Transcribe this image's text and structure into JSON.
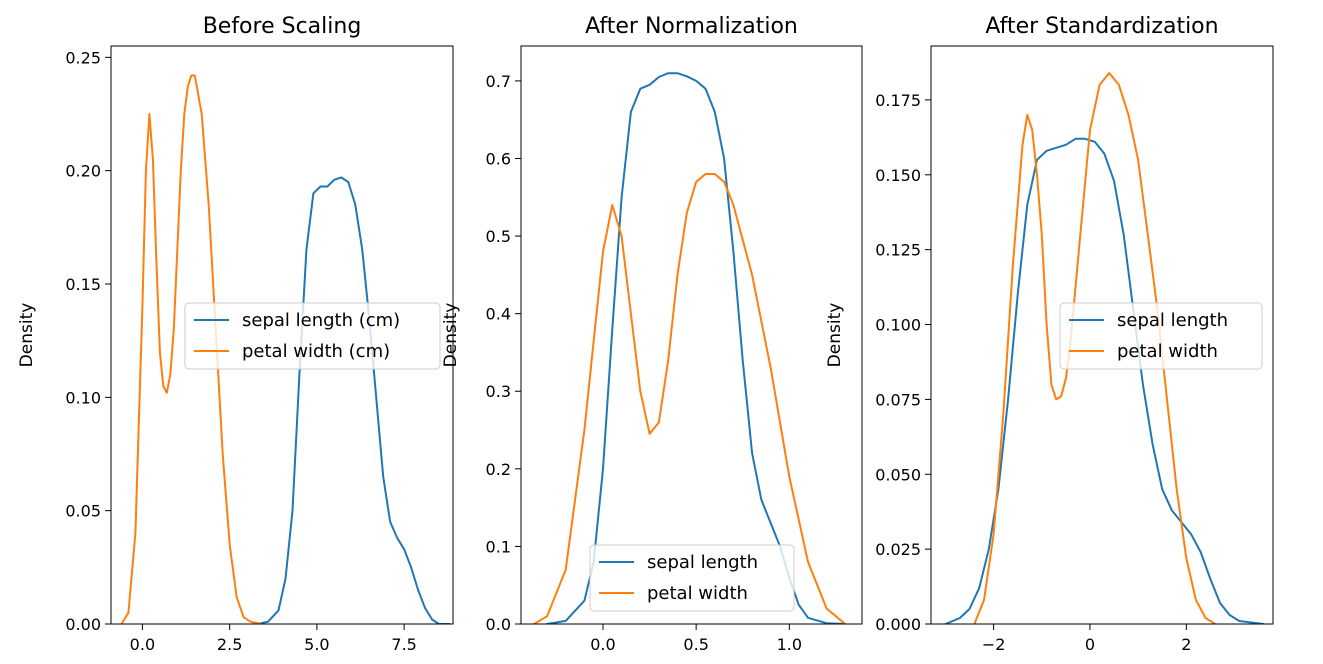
{
  "chart_data": [
    {
      "type": "line",
      "title": "Before Scaling",
      "xlabel": "",
      "ylabel": "Density",
      "xlim": [
        -0.9,
        8.9
      ],
      "ylim": [
        0,
        0.255
      ],
      "xticks": [
        0.0,
        2.5,
        5.0,
        7.5
      ],
      "xtick_labels": [
        "0.0",
        "2.5",
        "5.0",
        "7.5"
      ],
      "yticks": [
        0.0,
        0.05,
        0.1,
        0.15,
        0.2,
        0.25
      ],
      "ytick_labels": [
        "0.00",
        "0.05",
        "0.10",
        "0.15",
        "0.20",
        "0.25"
      ],
      "legend_position": "center-right",
      "series": [
        {
          "name": "sepal length (cm)",
          "color": "#1f77b4",
          "x": [
            3.3,
            3.6,
            3.9,
            4.1,
            4.3,
            4.5,
            4.7,
            4.9,
            5.1,
            5.3,
            5.5,
            5.7,
            5.9,
            6.1,
            6.3,
            6.5,
            6.7,
            6.9,
            7.1,
            7.3,
            7.5,
            7.7,
            7.9,
            8.1,
            8.3,
            8.5,
            8.8
          ],
          "values": [
            0.0,
            0.001,
            0.006,
            0.02,
            0.05,
            0.11,
            0.165,
            0.19,
            0.193,
            0.193,
            0.196,
            0.197,
            0.195,
            0.185,
            0.165,
            0.135,
            0.1,
            0.065,
            0.045,
            0.038,
            0.033,
            0.025,
            0.015,
            0.007,
            0.002,
            0.0,
            0.0
          ]
        },
        {
          "name": "petal width (cm)",
          "color": "#ff7f0e",
          "x": [
            -0.6,
            -0.4,
            -0.2,
            0.0,
            0.1,
            0.2,
            0.3,
            0.4,
            0.5,
            0.6,
            0.7,
            0.8,
            0.9,
            1.0,
            1.1,
            1.2,
            1.3,
            1.4,
            1.5,
            1.7,
            1.9,
            2.1,
            2.3,
            2.5,
            2.7,
            2.9,
            3.1,
            3.4
          ],
          "values": [
            0.0,
            0.005,
            0.04,
            0.14,
            0.2,
            0.225,
            0.205,
            0.16,
            0.12,
            0.105,
            0.102,
            0.11,
            0.13,
            0.165,
            0.2,
            0.225,
            0.237,
            0.242,
            0.242,
            0.225,
            0.185,
            0.13,
            0.075,
            0.035,
            0.012,
            0.003,
            0.001,
            0.0
          ]
        }
      ]
    },
    {
      "type": "line",
      "title": "After Normalization",
      "xlabel": "",
      "ylabel": "Density",
      "xlim": [
        -0.44,
        1.39
      ],
      "ylim": [
        0,
        0.745
      ],
      "xticks": [
        0.0,
        0.5,
        1.0
      ],
      "xtick_labels": [
        "0.0",
        "0.5",
        "1.0"
      ],
      "yticks": [
        0.0,
        0.1,
        0.2,
        0.3,
        0.4,
        0.5,
        0.6,
        0.7
      ],
      "ytick_labels": [
        "0.0",
        "0.1",
        "0.2",
        "0.3",
        "0.4",
        "0.5",
        "0.6",
        "0.7"
      ],
      "legend_position": "lower-center",
      "series": [
        {
          "name": "sepal length",
          "color": "#1f77b4",
          "x": [
            -0.3,
            -0.2,
            -0.1,
            -0.05,
            0.0,
            0.05,
            0.1,
            0.15,
            0.2,
            0.25,
            0.3,
            0.35,
            0.4,
            0.45,
            0.5,
            0.55,
            0.6,
            0.65,
            0.7,
            0.75,
            0.8,
            0.85,
            0.9,
            0.95,
            1.0,
            1.05,
            1.1,
            1.2,
            1.3
          ],
          "values": [
            0.0,
            0.004,
            0.03,
            0.08,
            0.2,
            0.38,
            0.55,
            0.66,
            0.69,
            0.695,
            0.705,
            0.71,
            0.71,
            0.706,
            0.7,
            0.69,
            0.66,
            0.6,
            0.48,
            0.34,
            0.22,
            0.16,
            0.13,
            0.1,
            0.06,
            0.025,
            0.008,
            0.001,
            0.0
          ]
        },
        {
          "name": "petal width",
          "color": "#ff7f0e",
          "x": [
            -0.37,
            -0.3,
            -0.2,
            -0.1,
            0.0,
            0.05,
            0.1,
            0.15,
            0.2,
            0.25,
            0.3,
            0.35,
            0.4,
            0.45,
            0.5,
            0.55,
            0.6,
            0.65,
            0.7,
            0.8,
            0.9,
            1.0,
            1.1,
            1.2,
            1.3
          ],
          "values": [
            0.0,
            0.01,
            0.07,
            0.25,
            0.48,
            0.54,
            0.5,
            0.4,
            0.3,
            0.245,
            0.26,
            0.34,
            0.45,
            0.53,
            0.57,
            0.58,
            0.58,
            0.57,
            0.54,
            0.45,
            0.33,
            0.19,
            0.08,
            0.02,
            0.0
          ]
        }
      ]
    },
    {
      "type": "line",
      "title": "After Standardization",
      "xlabel": "",
      "ylabel": "Density",
      "xlim": [
        -3.3,
        3.8
      ],
      "ylim": [
        0,
        0.193
      ],
      "xticks": [
        -2,
        0,
        2
      ],
      "xtick_labels": [
        "−2",
        "0",
        "2"
      ],
      "yticks": [
        0.0,
        0.025,
        0.05,
        0.075,
        0.1,
        0.125,
        0.15,
        0.175
      ],
      "ytick_labels": [
        "0.000",
        "0.025",
        "0.050",
        "0.075",
        "0.100",
        "0.125",
        "0.150",
        "0.175"
      ],
      "legend_position": "center-right",
      "series": [
        {
          "name": "sepal length",
          "color": "#1f77b4",
          "x": [
            -3.0,
            -2.7,
            -2.5,
            -2.3,
            -2.1,
            -1.9,
            -1.7,
            -1.5,
            -1.3,
            -1.1,
            -0.9,
            -0.7,
            -0.5,
            -0.3,
            -0.1,
            0.1,
            0.3,
            0.5,
            0.7,
            0.9,
            1.1,
            1.3,
            1.5,
            1.7,
            1.9,
            2.1,
            2.3,
            2.5,
            2.7,
            2.9,
            3.1,
            3.6
          ],
          "values": [
            0.0,
            0.002,
            0.005,
            0.012,
            0.025,
            0.045,
            0.075,
            0.11,
            0.14,
            0.155,
            0.158,
            0.159,
            0.16,
            0.162,
            0.162,
            0.161,
            0.157,
            0.148,
            0.13,
            0.105,
            0.08,
            0.06,
            0.045,
            0.038,
            0.034,
            0.03,
            0.024,
            0.015,
            0.007,
            0.003,
            0.001,
            0.0
          ]
        },
        {
          "name": "petal width",
          "color": "#ff7f0e",
          "x": [
            -2.4,
            -2.2,
            -2.0,
            -1.8,
            -1.6,
            -1.4,
            -1.3,
            -1.2,
            -1.1,
            -1.0,
            -0.9,
            -0.8,
            -0.7,
            -0.6,
            -0.5,
            -0.4,
            -0.2,
            0.0,
            0.2,
            0.4,
            0.6,
            0.8,
            1.0,
            1.2,
            1.4,
            1.6,
            1.8,
            2.0,
            2.2,
            2.4,
            2.6
          ],
          "values": [
            0.0,
            0.008,
            0.03,
            0.07,
            0.12,
            0.16,
            0.17,
            0.165,
            0.15,
            0.13,
            0.1,
            0.08,
            0.075,
            0.076,
            0.082,
            0.095,
            0.13,
            0.165,
            0.18,
            0.184,
            0.18,
            0.17,
            0.155,
            0.13,
            0.105,
            0.075,
            0.045,
            0.022,
            0.008,
            0.002,
            0.0
          ]
        }
      ]
    }
  ]
}
